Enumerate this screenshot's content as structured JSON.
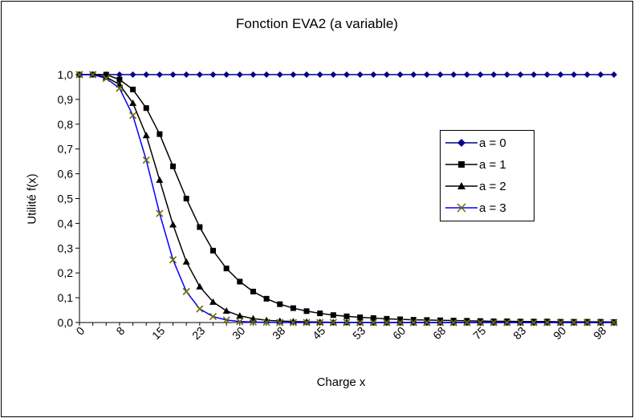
{
  "chart_data": {
    "type": "line",
    "title": "Fonction EVA2 (a variable)",
    "xlabel": "Charge x",
    "ylabel": "Utilité f(x)",
    "xlim": [
      0,
      100
    ],
    "ylim": [
      0,
      1.0
    ],
    "y_ticks": [
      "0,0",
      "0,1",
      "0,2",
      "0,3",
      "0,4",
      "0,5",
      "0,6",
      "0,7",
      "0,8",
      "0,9",
      "1,0"
    ],
    "x_ticks": [
      "0",
      "8",
      "15",
      "23",
      "30",
      "38",
      "45",
      "53",
      "60",
      "68",
      "75",
      "83",
      "90",
      "98"
    ],
    "x": [
      0,
      2.5,
      5,
      7.5,
      10,
      12.5,
      15,
      17.5,
      20,
      22.5,
      25,
      27.5,
      30,
      32.5,
      35,
      37.5,
      40,
      42.5,
      45,
      47.5,
      50,
      52.5,
      55,
      57.5,
      60,
      62.5,
      65,
      67.5,
      70,
      72.5,
      75,
      77.5,
      80,
      82.5,
      85,
      87.5,
      90,
      92.5,
      95,
      97.5,
      100
    ],
    "series": [
      {
        "name": "a = 0",
        "color": "#00008B",
        "marker": "diamond",
        "values": [
          1.0,
          1.0,
          1.0,
          1.0,
          1.0,
          1.0,
          1.0,
          1.0,
          1.0,
          1.0,
          1.0,
          1.0,
          1.0,
          1.0,
          1.0,
          1.0,
          1.0,
          1.0,
          1.0,
          1.0,
          1.0,
          1.0,
          1.0,
          1.0,
          1.0,
          1.0,
          1.0,
          1.0,
          1.0,
          1.0,
          1.0,
          1.0,
          1.0,
          1.0,
          1.0,
          1.0,
          1.0,
          1.0,
          1.0,
          1.0,
          1.0
        ]
      },
      {
        "name": "a = 1",
        "color": "#000000",
        "marker": "square",
        "values": [
          1.0,
          1.0,
          1.0,
          0.98,
          0.94,
          0.865,
          0.76,
          0.63,
          0.5,
          0.385,
          0.29,
          0.218,
          0.165,
          0.125,
          0.096,
          0.074,
          0.058,
          0.046,
          0.037,
          0.03,
          0.025,
          0.021,
          0.018,
          0.015,
          0.013,
          0.011,
          0.01,
          0.009,
          0.008,
          0.007,
          0.006,
          0.005,
          0.005,
          0.004,
          0.004,
          0.004,
          0.003,
          0.003,
          0.003,
          0.003,
          0.002
        ]
      },
      {
        "name": "a = 2",
        "color": "#000000",
        "marker": "triangle",
        "values": [
          1.0,
          1.0,
          0.99,
          0.96,
          0.885,
          0.755,
          0.575,
          0.395,
          0.245,
          0.145,
          0.083,
          0.047,
          0.027,
          0.016,
          0.009,
          0.006,
          0.004,
          0.003,
          0.002,
          0.001,
          0.001,
          0.001,
          0.0,
          0.0,
          0.0,
          0.0,
          0.0,
          0.0,
          0.0,
          0.0,
          0.0,
          0.0,
          0.0,
          0.0,
          0.0,
          0.0,
          0.0,
          0.0,
          0.0,
          0.0,
          0.0
        ]
      },
      {
        "name": "a = 3",
        "color": "#0000FF",
        "marker": "x",
        "values": [
          1.0,
          1.0,
          0.985,
          0.945,
          0.835,
          0.655,
          0.44,
          0.253,
          0.125,
          0.055,
          0.024,
          0.01,
          0.004,
          0.002,
          0.001,
          0.0,
          0.0,
          0.0,
          0.0,
          0.0,
          0.0,
          0.0,
          0.0,
          0.0,
          0.0,
          0.0,
          0.0,
          0.0,
          0.0,
          0.0,
          0.0,
          0.0,
          0.0,
          0.0,
          0.0,
          0.0,
          0.0,
          0.0,
          0.0,
          0.0,
          0.0
        ]
      }
    ]
  },
  "colors": {
    "marker_fill_x": "#F0E68C"
  }
}
